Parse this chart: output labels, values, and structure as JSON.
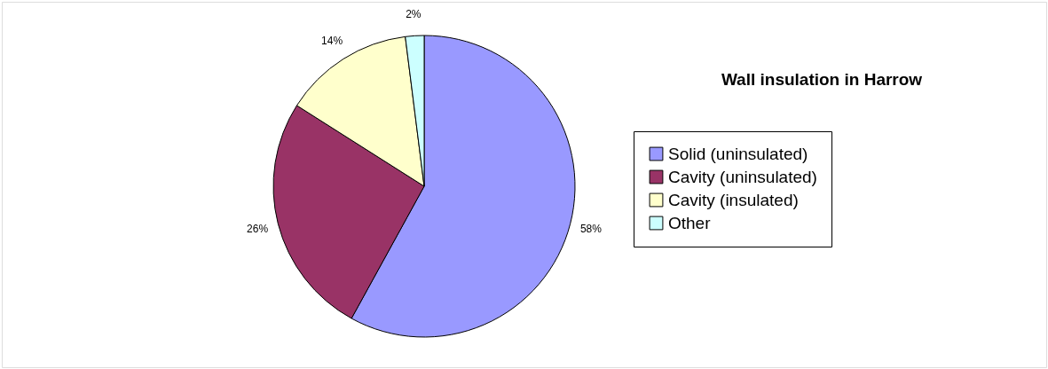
{
  "chart_data": {
    "type": "pie",
    "title": "Wall insulation in Harrow",
    "categories": [
      "Solid (uninsulated)",
      "Cavity (uninsulated)",
      "Cavity (insulated)",
      "Other"
    ],
    "values": [
      58,
      26,
      14,
      2
    ],
    "colors": [
      "#9999ff",
      "#993366",
      "#ffffcc",
      "#ccffff"
    ],
    "value_labels": [
      "58%",
      "26%",
      "14%",
      "2%"
    ],
    "legend": "right"
  }
}
